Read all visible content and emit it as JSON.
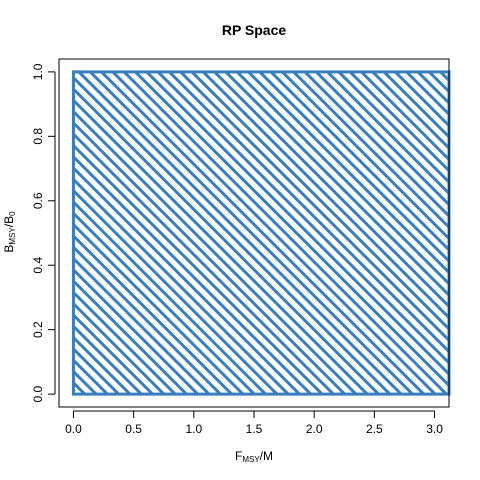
{
  "chart_data": {
    "type": "area",
    "title": "RP Space",
    "xlabel": {
      "main": "F",
      "sub": "MSY",
      "suffix": "/M"
    },
    "ylabel": {
      "main": "B",
      "sub": "MSY",
      "sep": "/B",
      "sub2": "0"
    },
    "xlim": [
      -0.12,
      3.12
    ],
    "ylim": [
      -0.04,
      1.04
    ],
    "x_ticks": [
      "0.0",
      "0.5",
      "1.0",
      "1.5",
      "2.0",
      "2.5",
      "3.0"
    ],
    "x_tick_values": [
      0,
      0.5,
      1,
      1.5,
      2,
      2.5,
      3
    ],
    "y_ticks": [
      "0.0",
      "0.2",
      "0.4",
      "0.6",
      "0.8",
      "1.0"
    ],
    "y_tick_values": [
      0,
      0.2,
      0.4,
      0.6,
      0.8,
      1.0
    ],
    "region": {
      "x": [
        0,
        3.12
      ],
      "y": [
        0,
        1.0
      ],
      "fill": "hatched"
    },
    "color": "#3a7fbd",
    "grid": false,
    "legend": "none"
  }
}
